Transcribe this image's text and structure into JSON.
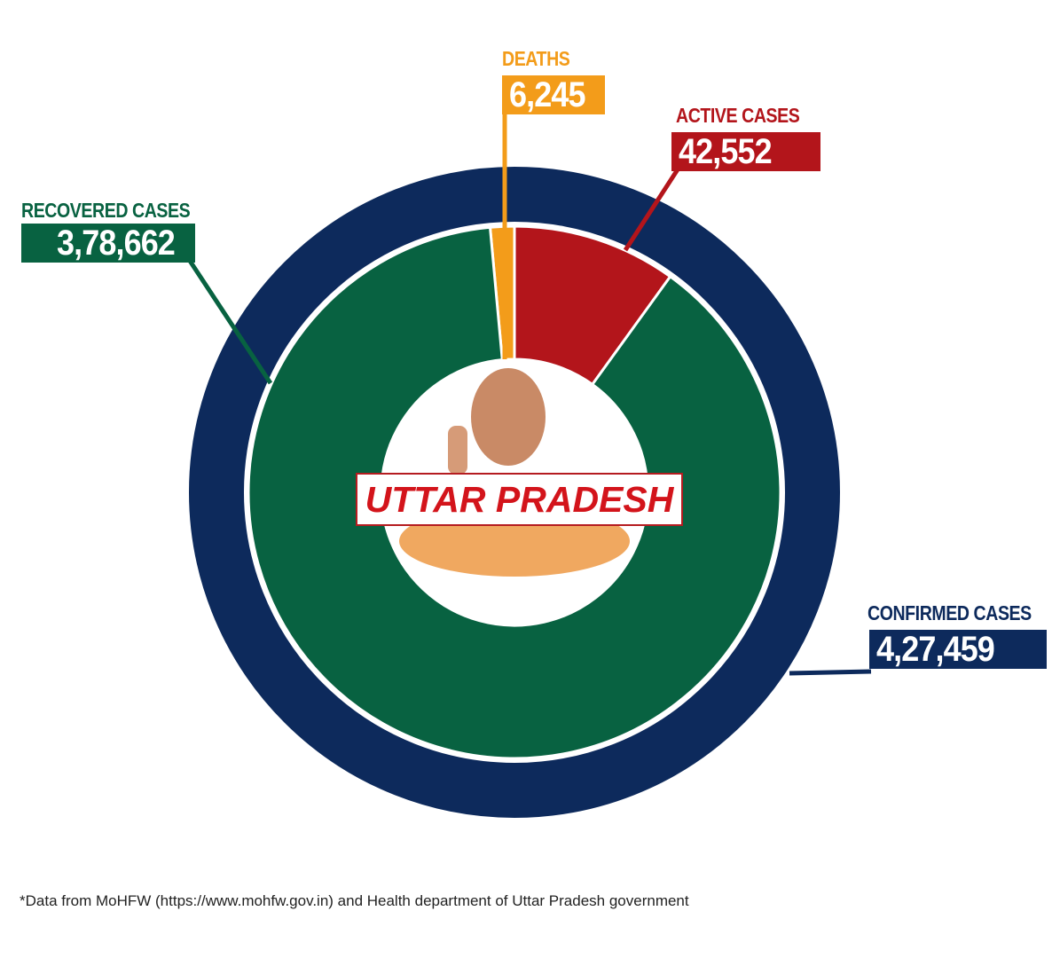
{
  "chart_data": {
    "type": "pie",
    "title": "UTTAR PRADESH",
    "inner_series": [
      {
        "name": "DEATHS",
        "value": 6245,
        "display": "6,245",
        "color": "#f39c1a"
      },
      {
        "name": "ACTIVE CASES",
        "value": 42552,
        "display": "42,552",
        "color": "#b3151b"
      },
      {
        "name": "RECOVERED CASES",
        "value": 378662,
        "display": "3,78,662",
        "color": "#086241"
      }
    ],
    "outer_series": {
      "name": "CONFIRMED CASES",
      "value": 427459,
      "display": "4,27,459",
      "color": "#0d2a5c"
    },
    "legend": "callout labels",
    "footnote": "*Data from MoHFW (https://www.mohfw.gov.in) and Health department of Uttar Pradesh government"
  }
}
